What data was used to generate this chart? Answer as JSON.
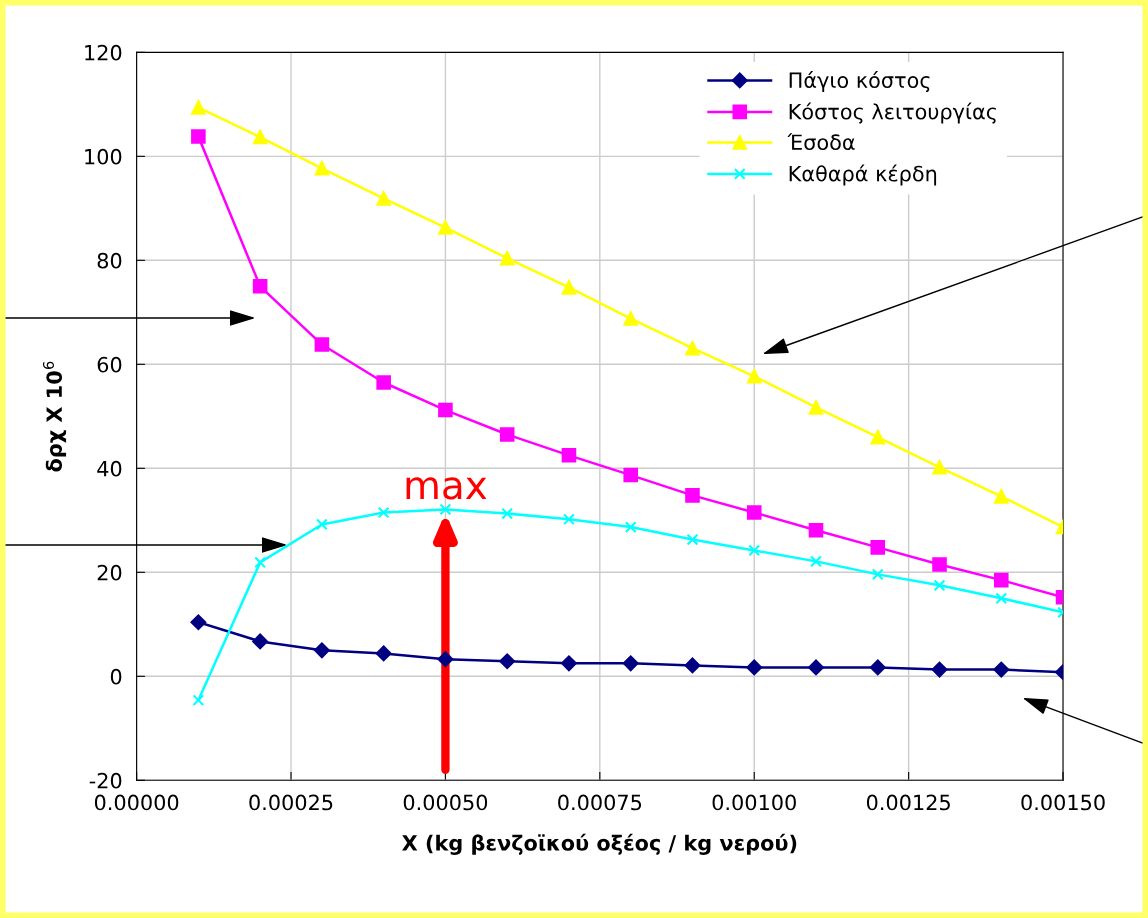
{
  "chart_data": {
    "type": "line",
    "xlabel": "X (kg βενζοϊκού οξέος / kg νερού)",
    "ylabel": "δρχ X 10$^{6}$",
    "x": [
      0.0001,
      0.0002,
      0.0003,
      0.0004,
      0.0005,
      0.0006,
      0.0007,
      0.0008,
      0.0009,
      0.001,
      0.0011,
      0.0012,
      0.0013,
      0.0014,
      0.0015
    ],
    "series": [
      {
        "name": "Πάγιο κόστος",
        "color": "#000080",
        "marker": "diamond",
        "values": [
          10.4,
          6.7,
          5.0,
          4.4,
          3.3,
          2.9,
          2.5,
          2.5,
          2.1,
          1.7,
          1.7,
          1.7,
          1.3,
          1.3,
          0.8
        ]
      },
      {
        "name": "Κόστος λειτουργίας",
        "color": "#ff00ff",
        "marker": "square",
        "values": [
          103.8,
          75.0,
          63.8,
          56.5,
          51.2,
          46.5,
          42.5,
          38.7,
          34.8,
          31.5,
          28.1,
          24.8,
          21.5,
          18.5,
          15.2
        ]
      },
      {
        "name": "Έσοδα",
        "color": "#ffff00",
        "marker": "triangle",
        "values": [
          109.4,
          103.7,
          97.7,
          91.9,
          86.3,
          80.4,
          74.8,
          68.8,
          63.1,
          57.7,
          51.7,
          46.0,
          40.2,
          34.6,
          28.7
        ]
      },
      {
        "name": "Καθαρά κέρδη",
        "color": "#00ffff",
        "marker": "cross",
        "values": [
          -4.6,
          21.9,
          29.2,
          31.5,
          32.1,
          31.3,
          30.2,
          28.7,
          26.3,
          24.2,
          22.1,
          19.6,
          17.5,
          15.0,
          12.3
        ]
      }
    ],
    "annotations": [
      {
        "text": "max",
        "x": 0.0005,
        "y": 32
      }
    ],
    "xlim": [
      0,
      0.0015
    ],
    "ylim": [
      -20,
      120
    ],
    "xticks": [
      {
        "value": 0,
        "label": "0.00000"
      },
      {
        "value": 0.00025,
        "label": "0.00025"
      },
      {
        "value": 0.0005,
        "label": "0.00050"
      },
      {
        "value": 0.00075,
        "label": "0.00075"
      },
      {
        "value": 0.001,
        "label": "0.00100"
      },
      {
        "value": 0.00125,
        "label": "0.00125"
      },
      {
        "value": 0.0015,
        "label": "0.00150"
      }
    ],
    "yticks": [
      -20,
      0,
      20,
      40,
      60,
      80,
      100,
      120
    ],
    "grid": true,
    "legend": "top right",
    "line_style": "solid"
  }
}
